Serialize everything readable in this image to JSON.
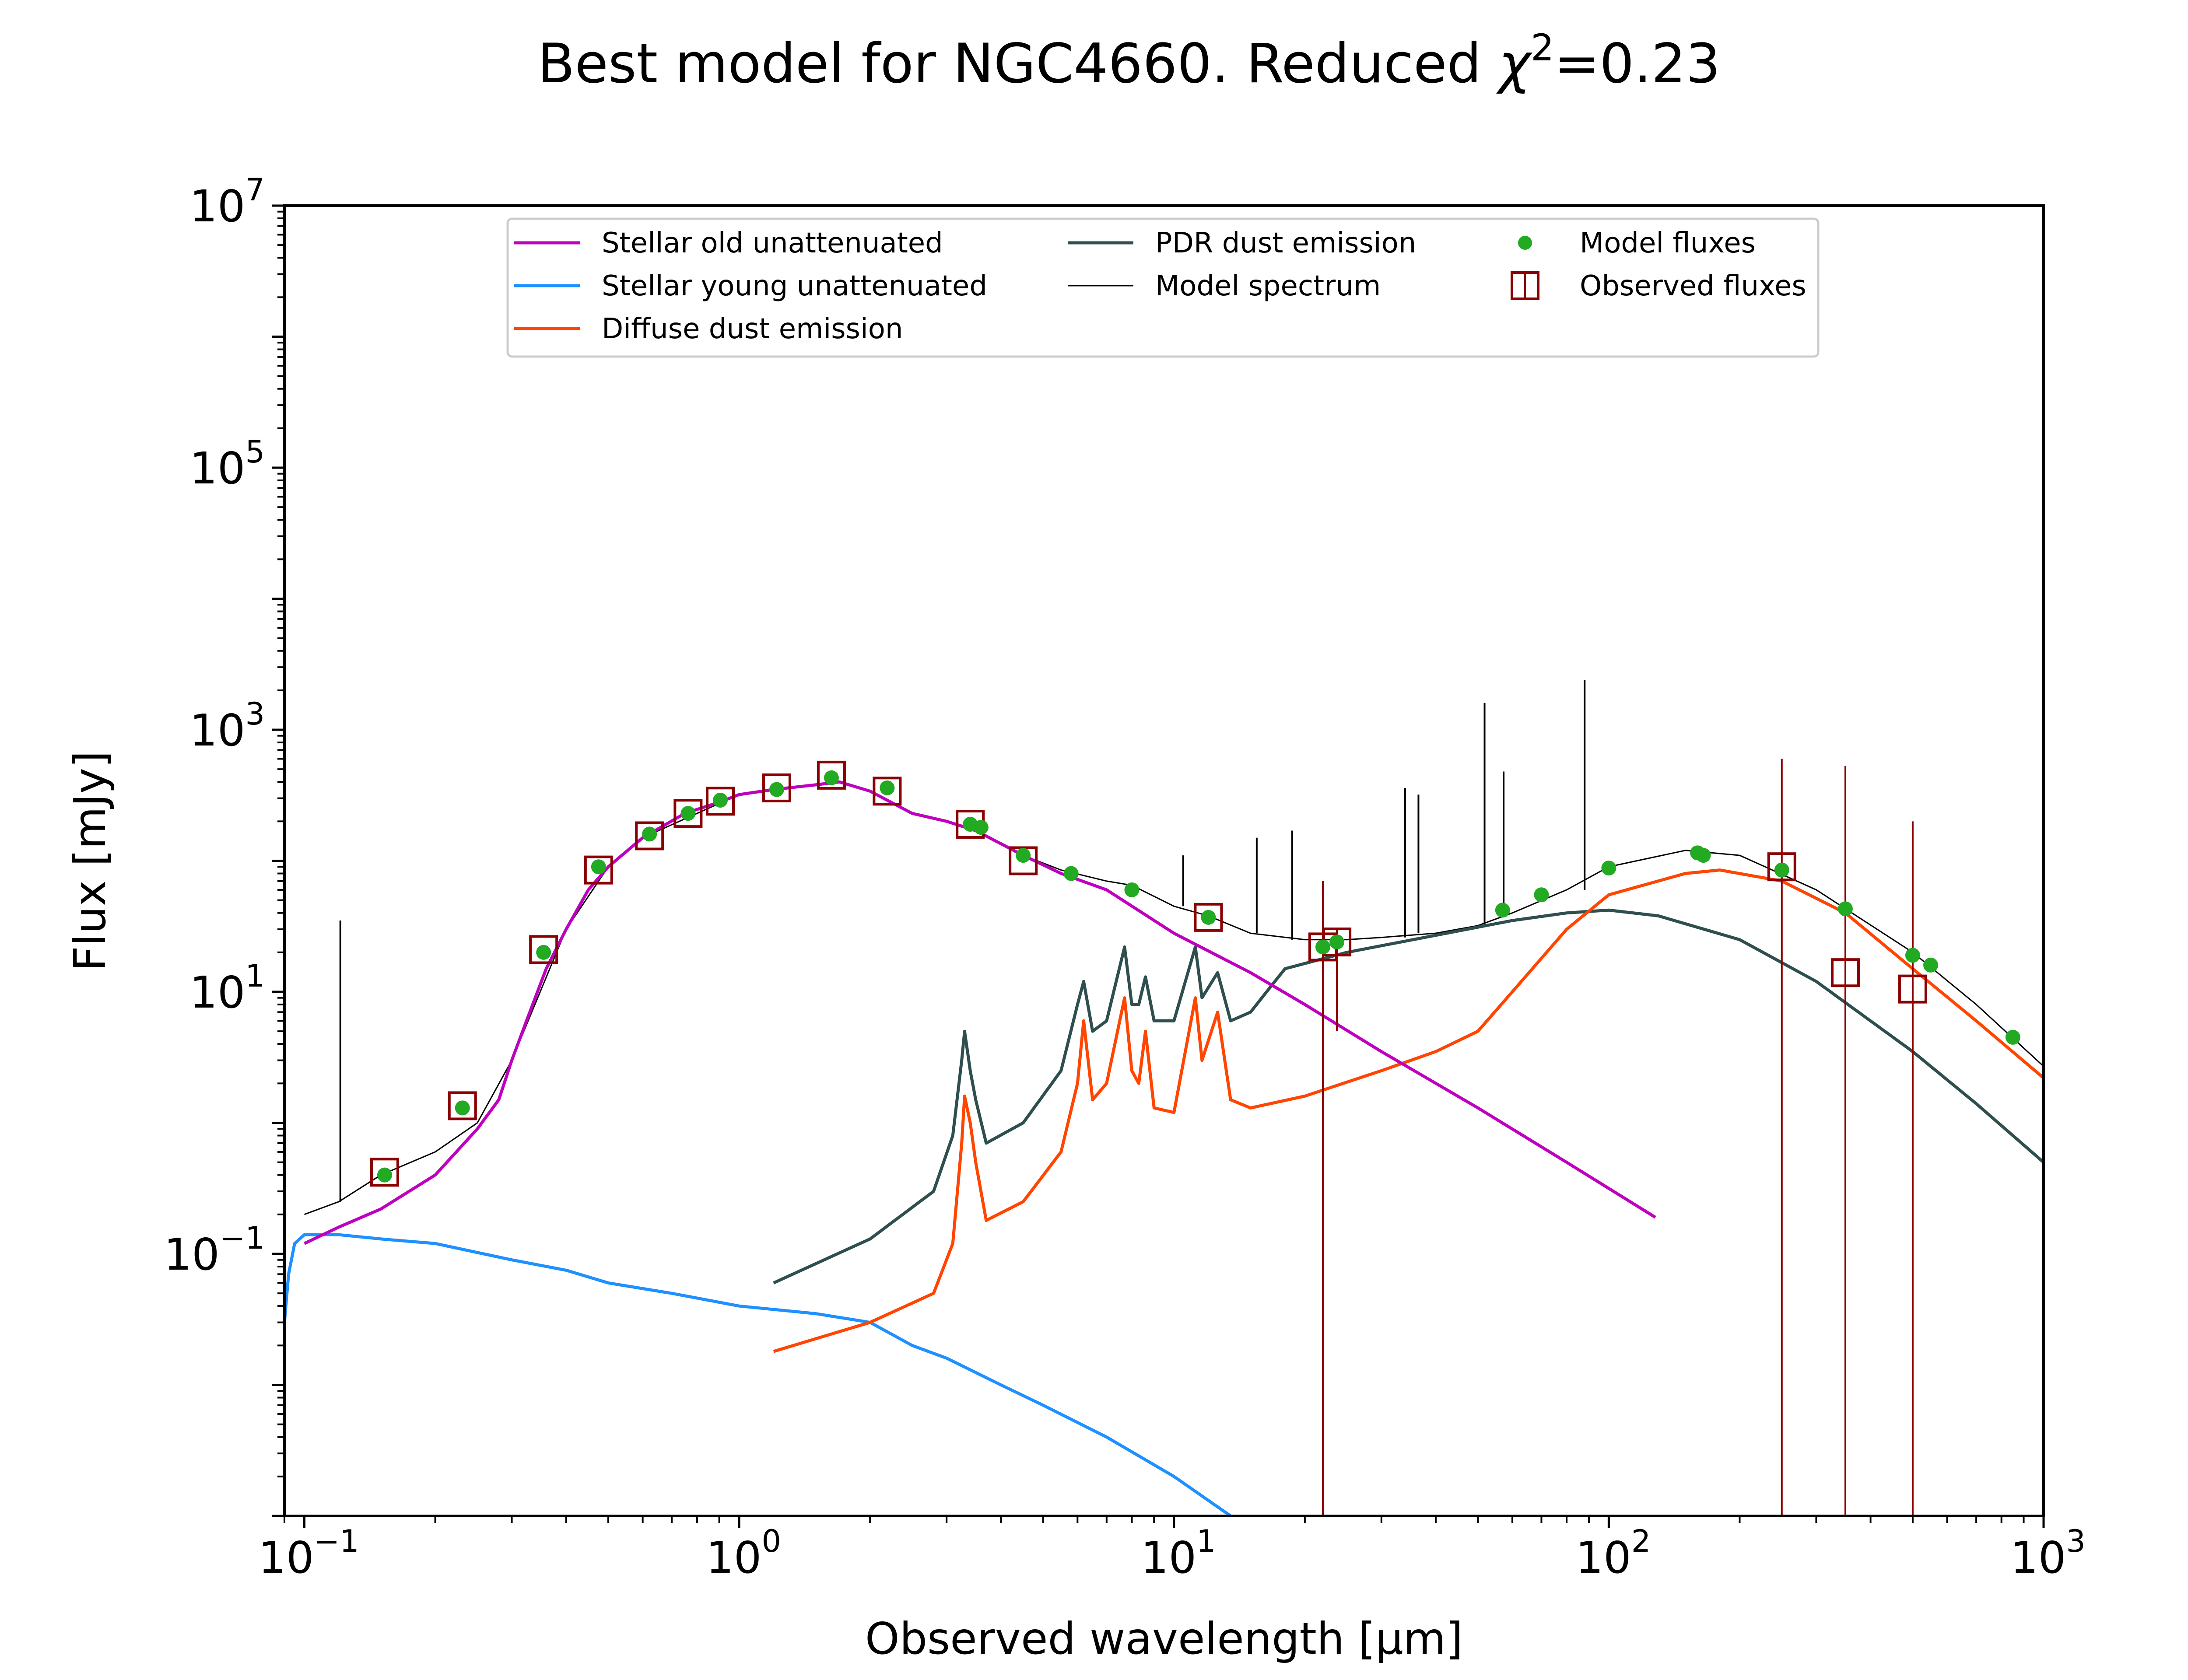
{
  "figure": {
    "title_text": "Best model for NGC4660. Reduced ",
    "title_chi": "χ",
    "title_sup": "2",
    "title_value": "=0.23"
  },
  "chart_data": {
    "type": "line",
    "xscale": "log",
    "yscale": "log",
    "xlabel": "Observed wavelength [μm]",
    "ylabel": "Flux [mJy]",
    "xlim": [
      0.09,
      1000
    ],
    "ylim": [
      0.001,
      10000000
    ],
    "xticks": [
      {
        "value": 0.1,
        "base": "10",
        "exp": "−1"
      },
      {
        "value": 1,
        "base": "10",
        "exp": "0"
      },
      {
        "value": 10,
        "base": "10",
        "exp": "1"
      },
      {
        "value": 100,
        "base": "10",
        "exp": "2"
      },
      {
        "value": 1000,
        "base": "10",
        "exp": "3"
      }
    ],
    "yticks": [
      {
        "value": 0.1,
        "base": "10",
        "exp": "−1"
      },
      {
        "value": 10,
        "base": "10",
        "exp": "1"
      },
      {
        "value": 1000,
        "base": "10",
        "exp": "3"
      },
      {
        "value": 100000,
        "base": "10",
        "exp": "5"
      },
      {
        "value": 10000000,
        "base": "10",
        "exp": "7"
      }
    ],
    "grid": false,
    "legend": {
      "placement": "top-center",
      "columns": [
        [
          "stellar_old",
          "stellar_young",
          "diffuse"
        ],
        [
          "pdr",
          "model_spectrum"
        ],
        [
          "model_fluxes",
          "observed_fluxes"
        ]
      ]
    },
    "series": [
      {
        "id": "stellar_old",
        "name": "Stellar old unattenuated",
        "color": "#bf00bf",
        "kind": "line",
        "points": [
          [
            0.1,
            0.12
          ],
          [
            0.12,
            0.16
          ],
          [
            0.15,
            0.22
          ],
          [
            0.2,
            0.4
          ],
          [
            0.25,
            0.9
          ],
          [
            0.28,
            1.5
          ],
          [
            0.3,
            3
          ],
          [
            0.33,
            7
          ],
          [
            0.36,
            15
          ],
          [
            0.4,
            30
          ],
          [
            0.45,
            60
          ],
          [
            0.5,
            90
          ],
          [
            0.6,
            150
          ],
          [
            0.75,
            230
          ],
          [
            0.9,
            280
          ],
          [
            1.0,
            320
          ],
          [
            1.2,
            350
          ],
          [
            1.5,
            380
          ],
          [
            1.7,
            400
          ],
          [
            2.0,
            340
          ],
          [
            2.5,
            230
          ],
          [
            3.0,
            200
          ],
          [
            3.5,
            170
          ],
          [
            4.5,
            110
          ],
          [
            5.5,
            80
          ],
          [
            7.0,
            60
          ],
          [
            10,
            28
          ],
          [
            15,
            14
          ],
          [
            20,
            8
          ],
          [
            30,
            3.5
          ],
          [
            50,
            1.3
          ],
          [
            80,
            0.5
          ],
          [
            128,
            0.19
          ]
        ]
      },
      {
        "id": "stellar_young",
        "name": "Stellar young unattenuated",
        "color": "#1e90ff",
        "kind": "line",
        "points": [
          [
            0.09,
            0.03
          ],
          [
            0.092,
            0.07
          ],
          [
            0.095,
            0.12
          ],
          [
            0.1,
            0.14
          ],
          [
            0.12,
            0.14
          ],
          [
            0.15,
            0.13
          ],
          [
            0.2,
            0.12
          ],
          [
            0.3,
            0.09
          ],
          [
            0.4,
            0.075
          ],
          [
            0.5,
            0.06
          ],
          [
            0.7,
            0.05
          ],
          [
            1.0,
            0.04
          ],
          [
            1.5,
            0.035
          ],
          [
            2.0,
            0.03
          ],
          [
            2.5,
            0.02
          ],
          [
            3.0,
            0.016
          ],
          [
            4.0,
            0.01
          ],
          [
            5.0,
            0.007
          ],
          [
            7.0,
            0.004
          ],
          [
            10,
            0.002
          ],
          [
            13.5,
            0.001
          ]
        ]
      },
      {
        "id": "diffuse",
        "name": "Diffuse dust emission",
        "color": "#ff4500",
        "kind": "line",
        "points": [
          [
            1.2,
            0.018
          ],
          [
            2,
            0.03
          ],
          [
            2.8,
            0.05
          ],
          [
            3.1,
            0.12
          ],
          [
            3.25,
            0.7
          ],
          [
            3.3,
            1.6
          ],
          [
            3.4,
            1.0
          ],
          [
            3.5,
            0.5
          ],
          [
            3.7,
            0.18
          ],
          [
            4.5,
            0.25
          ],
          [
            5.5,
            0.6
          ],
          [
            6.0,
            2
          ],
          [
            6.2,
            6
          ],
          [
            6.5,
            1.5
          ],
          [
            7.0,
            2
          ],
          [
            7.7,
            9
          ],
          [
            8.0,
            2.5
          ],
          [
            8.3,
            2
          ],
          [
            8.6,
            5
          ],
          [
            9.0,
            1.3
          ],
          [
            10,
            1.2
          ],
          [
            11.2,
            9
          ],
          [
            11.6,
            3
          ],
          [
            12.6,
            7
          ],
          [
            13.5,
            1.5
          ],
          [
            15,
            1.3
          ],
          [
            20,
            1.6
          ],
          [
            30,
            2.5
          ],
          [
            40,
            3.5
          ],
          [
            50,
            5
          ],
          [
            60,
            10
          ],
          [
            80,
            30
          ],
          [
            100,
            55
          ],
          [
            150,
            80
          ],
          [
            180,
            85
          ],
          [
            250,
            70
          ],
          [
            350,
            40
          ],
          [
            500,
            15
          ],
          [
            700,
            6
          ],
          [
            1000,
            2.2
          ]
        ]
      },
      {
        "id": "pdr",
        "name": "PDR dust emission",
        "color": "#2f4f4f",
        "kind": "line",
        "points": [
          [
            1.2,
            0.06
          ],
          [
            2,
            0.13
          ],
          [
            2.8,
            0.3
          ],
          [
            3.1,
            0.8
          ],
          [
            3.25,
            3
          ],
          [
            3.3,
            5
          ],
          [
            3.4,
            2.5
          ],
          [
            3.5,
            1.5
          ],
          [
            3.7,
            0.7
          ],
          [
            4.5,
            1.0
          ],
          [
            5.5,
            2.5
          ],
          [
            6.0,
            8
          ],
          [
            6.2,
            12
          ],
          [
            6.5,
            5
          ],
          [
            7.0,
            6
          ],
          [
            7.7,
            22
          ],
          [
            8.0,
            8
          ],
          [
            8.3,
            8
          ],
          [
            8.6,
            13
          ],
          [
            9.0,
            6
          ],
          [
            10,
            6
          ],
          [
            11.2,
            22
          ],
          [
            11.6,
            9
          ],
          [
            12.6,
            14
          ],
          [
            13.5,
            6
          ],
          [
            15,
            7
          ],
          [
            18,
            15
          ],
          [
            25,
            20
          ],
          [
            40,
            27
          ],
          [
            60,
            35
          ],
          [
            80,
            40
          ],
          [
            100,
            42
          ],
          [
            130,
            38
          ],
          [
            200,
            25
          ],
          [
            300,
            12
          ],
          [
            500,
            3.5
          ],
          [
            700,
            1.4
          ],
          [
            1000,
            0.5
          ]
        ]
      },
      {
        "id": "model_spectrum",
        "name": "Model spectrum",
        "color": "#000000",
        "kind": "line",
        "points": [
          [
            0.1,
            0.2
          ],
          [
            0.12,
            0.25
          ],
          [
            0.15,
            0.4
          ],
          [
            0.2,
            0.6
          ],
          [
            0.25,
            1.0
          ],
          [
            0.3,
            3
          ],
          [
            0.4,
            30
          ],
          [
            0.5,
            90
          ],
          [
            0.6,
            150
          ],
          [
            0.8,
            230
          ],
          [
            1.0,
            320
          ],
          [
            1.5,
            380
          ],
          [
            1.7,
            400
          ],
          [
            2.0,
            340
          ],
          [
            2.5,
            230
          ],
          [
            3.0,
            200
          ],
          [
            3.5,
            170
          ],
          [
            4.5,
            110
          ],
          [
            5.5,
            85
          ],
          [
            7.0,
            70
          ],
          [
            8.0,
            65
          ],
          [
            10,
            45
          ],
          [
            12,
            38
          ],
          [
            15,
            28
          ],
          [
            20,
            25
          ],
          [
            25,
            25
          ],
          [
            30,
            26
          ],
          [
            40,
            28
          ],
          [
            50,
            32
          ],
          [
            60,
            40
          ],
          [
            80,
            60
          ],
          [
            100,
            90
          ],
          [
            150,
            120
          ],
          [
            200,
            110
          ],
          [
            300,
            60
          ],
          [
            500,
            20
          ],
          [
            700,
            8
          ],
          [
            1000,
            2.7
          ]
        ],
        "lines": [
          [
            0.121,
            35
          ],
          [
            10.5,
            110
          ],
          [
            15.5,
            150
          ],
          [
            18.7,
            170
          ],
          [
            34,
            360
          ],
          [
            36.5,
            320
          ],
          [
            51.8,
            1600
          ],
          [
            57.3,
            480
          ],
          [
            88,
            2400
          ]
        ]
      },
      {
        "id": "model_fluxes",
        "name": "Model fluxes",
        "color": "#22aa22",
        "kind": "scatter",
        "points": [
          [
            0.153,
            0.4
          ],
          [
            0.231,
            1.3
          ],
          [
            0.355,
            20
          ],
          [
            0.475,
            90
          ],
          [
            0.622,
            160
          ],
          [
            0.763,
            230
          ],
          [
            0.905,
            290
          ],
          [
            1.22,
            350
          ],
          [
            1.63,
            430
          ],
          [
            2.19,
            360
          ],
          [
            3.4,
            190
          ],
          [
            3.6,
            180
          ],
          [
            4.5,
            110
          ],
          [
            5.8,
            80
          ],
          [
            8.0,
            60
          ],
          [
            12,
            37
          ],
          [
            22,
            22
          ],
          [
            23.7,
            24
          ],
          [
            57,
            42
          ],
          [
            70,
            55
          ],
          [
            100,
            88
          ],
          [
            160,
            115
          ],
          [
            165,
            110
          ],
          [
            250,
            85
          ],
          [
            350,
            43
          ],
          [
            500,
            19
          ],
          [
            550,
            16
          ],
          [
            850,
            4.5
          ]
        ]
      },
      {
        "id": "observed_fluxes",
        "name": "Observed fluxes",
        "color": "#8b0000",
        "kind": "errorbar",
        "points": [
          {
            "x": 0.153,
            "y": 0.42
          },
          {
            "x": 0.231,
            "y": 1.35
          },
          {
            "x": 0.355,
            "y": 21
          },
          {
            "x": 0.475,
            "y": 85
          },
          {
            "x": 0.622,
            "y": 155
          },
          {
            "x": 0.763,
            "y": 230
          },
          {
            "x": 0.905,
            "y": 285
          },
          {
            "x": 1.22,
            "y": 360
          },
          {
            "x": 1.63,
            "y": 450
          },
          {
            "x": 2.19,
            "y": 340
          },
          {
            "x": 3.4,
            "y": 190
          },
          {
            "x": 4.5,
            "y": 100
          },
          {
            "x": 12,
            "y": 37
          },
          {
            "x": 22,
            "y": 22,
            "ylow": 0.001,
            "yhigh": 70
          },
          {
            "x": 23.7,
            "y": 24,
            "ylow": 5,
            "yhigh": 30
          },
          {
            "x": 250,
            "y": 90,
            "ylow": 0.001,
            "yhigh": 600
          },
          {
            "x": 350,
            "y": 14,
            "ylow": 0.001,
            "yhigh": 530
          },
          {
            "x": 500,
            "y": 10.5,
            "ylow": 0.001,
            "yhigh": 200
          }
        ]
      }
    ]
  }
}
